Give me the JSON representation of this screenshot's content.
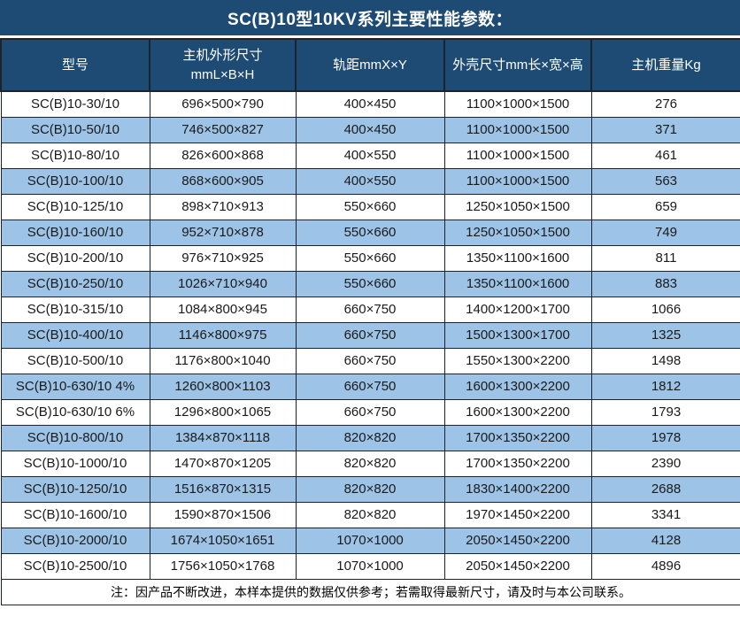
{
  "title": "SC(B)10型10KV系列主要性能参数：",
  "table": {
    "columns": [
      {
        "label": "型号"
      },
      {
        "label": "主机外形尺寸",
        "label2": "mmL×B×H"
      },
      {
        "label": "轨距mmX×Y"
      },
      {
        "label": "外壳尺寸mm长×宽×高"
      },
      {
        "label": "主机重量Kg"
      }
    ],
    "rows": [
      [
        "SC(B)10-30/10",
        "696×500×790",
        "400×450",
        "1100×1000×1500",
        "276"
      ],
      [
        "SC(B)10-50/10",
        "746×500×827",
        "400×450",
        "1100×1000×1500",
        "371"
      ],
      [
        "SC(B)10-80/10",
        "826×600×868",
        "400×550",
        "1100×1000×1500",
        "461"
      ],
      [
        "SC(B)10-100/10",
        "868×600×905",
        "400×550",
        "1100×1000×1500",
        "563"
      ],
      [
        "SC(B)10-125/10",
        "898×710×913",
        "550×660",
        "1250×1050×1500",
        "659"
      ],
      [
        "SC(B)10-160/10",
        "952×710×878",
        "550×660",
        "1250×1050×1500",
        "749"
      ],
      [
        "SC(B)10-200/10",
        "976×710×925",
        "550×660",
        "1350×1100×1600",
        "811"
      ],
      [
        "SC(B)10-250/10",
        "1026×710×940",
        "550×660",
        "1350×1100×1600",
        "883"
      ],
      [
        "SC(B)10-315/10",
        "1084×800×945",
        "660×750",
        "1400×1200×1700",
        "1066"
      ],
      [
        "SC(B)10-400/10",
        "1146×800×975",
        "660×750",
        "1500×1300×1700",
        "1325"
      ],
      [
        "SC(B)10-500/10",
        "1176×800×1040",
        "660×750",
        "1550×1300×2200",
        "1498"
      ],
      [
        "SC(B)10-630/10 4%",
        "1260×800×1103",
        "660×750",
        "1600×1300×2200",
        "1812"
      ],
      [
        "SC(B)10-630/10 6%",
        "1296×800×1065",
        "660×750",
        "1600×1300×2200",
        "1793"
      ],
      [
        "SC(B)10-800/10",
        "1384×870×1118",
        "820×820",
        "1700×1350×2200",
        "1978"
      ],
      [
        "SC(B)10-1000/10",
        "1470×870×1205",
        "820×820",
        "1700×1350×2200",
        "2390"
      ],
      [
        "SC(B)10-1250/10",
        "1516×870×1315",
        "820×820",
        "1830×1400×2200",
        "2688"
      ],
      [
        "SC(B)10-1600/10",
        "1590×870×1506",
        "820×820",
        "1970×1450×2200",
        "3341"
      ],
      [
        "SC(B)10-2000/10",
        "1674×1050×1651",
        "1070×1000",
        "2050×1450×2200",
        "4128"
      ],
      [
        "SC(B)10-2500/10",
        "1756×1050×1768",
        "1070×1000",
        "2050×1450×2200",
        "4896"
      ]
    ]
  },
  "note": "注：因产品不断改进，本样本提供的数据仅供参考；若需取得最新尺寸，请及时与本公司联系。",
  "colors": {
    "header_bg": "#1E4B74",
    "alt_row_bg": "#9DC3E6",
    "row_bg": "#FFFFFF",
    "border": "#1B2330",
    "header_text": "#FFFFFF",
    "cell_text": "#1A1A1A"
  }
}
